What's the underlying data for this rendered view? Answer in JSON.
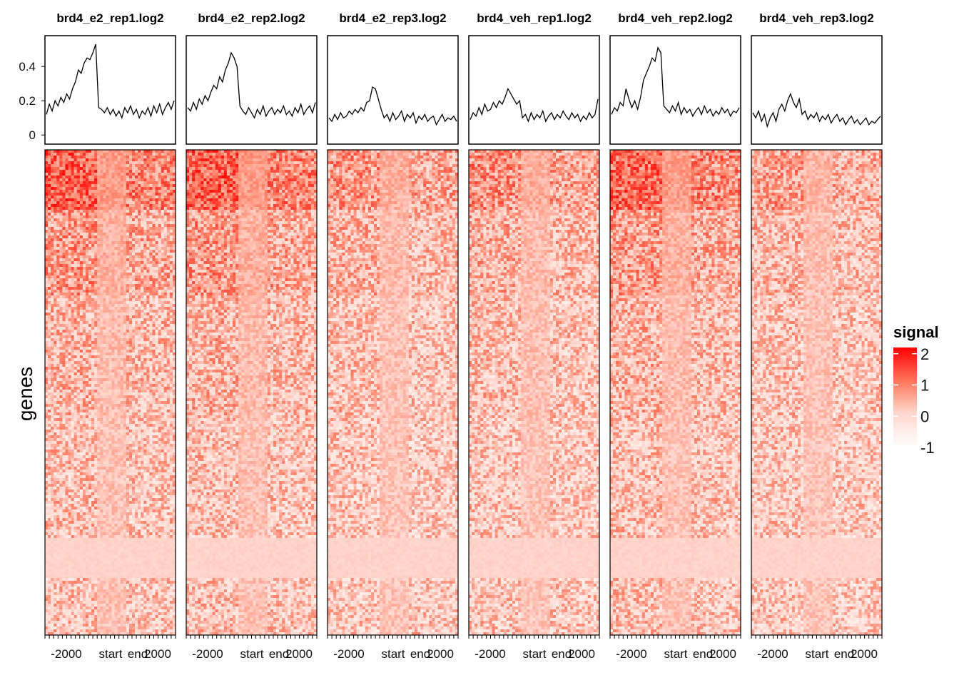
{
  "chart_data": {
    "type": "heatmap",
    "panels": [
      {
        "title": "brd4_e2_rep1.log2",
        "strength": 1.0,
        "profile": [
          0.12,
          0.18,
          0.14,
          0.2,
          0.17,
          0.22,
          0.19,
          0.24,
          0.21,
          0.27,
          0.31,
          0.38,
          0.36,
          0.42,
          0.45,
          0.44,
          0.48,
          0.53,
          0.16,
          0.15,
          0.13,
          0.16,
          0.12,
          0.15,
          0.11,
          0.14,
          0.1,
          0.16,
          0.13,
          0.17,
          0.12,
          0.15,
          0.1,
          0.14,
          0.12,
          0.16,
          0.11,
          0.17,
          0.13,
          0.18,
          0.12,
          0.16,
          0.19,
          0.15,
          0.2
        ]
      },
      {
        "title": "brd4_e2_rep2.log2",
        "strength": 1.0,
        "profile": [
          0.16,
          0.14,
          0.19,
          0.15,
          0.21,
          0.18,
          0.23,
          0.2,
          0.25,
          0.29,
          0.27,
          0.34,
          0.31,
          0.38,
          0.42,
          0.48,
          0.45,
          0.4,
          0.17,
          0.14,
          0.12,
          0.16,
          0.13,
          0.1,
          0.15,
          0.12,
          0.17,
          0.11,
          0.14,
          0.16,
          0.12,
          0.15,
          0.13,
          0.17,
          0.12,
          0.14,
          0.11,
          0.16,
          0.13,
          0.18,
          0.12,
          0.15,
          0.17,
          0.13,
          0.19
        ]
      },
      {
        "title": "brd4_e2_rep3.log2",
        "strength": 0.55,
        "profile": [
          0.1,
          0.08,
          0.12,
          0.09,
          0.13,
          0.1,
          0.11,
          0.14,
          0.12,
          0.15,
          0.13,
          0.16,
          0.14,
          0.19,
          0.2,
          0.28,
          0.27,
          0.21,
          0.15,
          0.1,
          0.12,
          0.08,
          0.13,
          0.09,
          0.11,
          0.14,
          0.08,
          0.12,
          0.1,
          0.13,
          0.07,
          0.11,
          0.09,
          0.12,
          0.08,
          0.1,
          0.11,
          0.06,
          0.09,
          0.12,
          0.08,
          0.1,
          0.09,
          0.11,
          0.08
        ]
      },
      {
        "title": "brd4_veh_rep1.log2",
        "strength": 0.6,
        "profile": [
          0.09,
          0.13,
          0.11,
          0.16,
          0.12,
          0.18,
          0.14,
          0.15,
          0.19,
          0.16,
          0.2,
          0.18,
          0.22,
          0.27,
          0.24,
          0.21,
          0.18,
          0.2,
          0.1,
          0.12,
          0.08,
          0.13,
          0.09,
          0.12,
          0.1,
          0.14,
          0.08,
          0.11,
          0.13,
          0.09,
          0.12,
          0.1,
          0.14,
          0.11,
          0.09,
          0.13,
          0.1,
          0.12,
          0.08,
          0.11,
          0.09,
          0.13,
          0.1,
          0.12,
          0.21
        ]
      },
      {
        "title": "brd4_veh_rep2.log2",
        "strength": 0.95,
        "profile": [
          0.12,
          0.16,
          0.14,
          0.19,
          0.17,
          0.27,
          0.21,
          0.16,
          0.2,
          0.15,
          0.22,
          0.32,
          0.36,
          0.4,
          0.45,
          0.43,
          0.51,
          0.48,
          0.17,
          0.15,
          0.13,
          0.17,
          0.14,
          0.19,
          0.12,
          0.16,
          0.13,
          0.15,
          0.11,
          0.14,
          0.16,
          0.12,
          0.17,
          0.13,
          0.15,
          0.11,
          0.14,
          0.12,
          0.16,
          0.13,
          0.15,
          0.11,
          0.14,
          0.13,
          0.16
        ]
      },
      {
        "title": "brd4_veh_rep3.log2",
        "strength": 0.45,
        "profile": [
          0.13,
          0.1,
          0.14,
          0.08,
          0.12,
          0.05,
          0.1,
          0.13,
          0.08,
          0.15,
          0.18,
          0.14,
          0.2,
          0.24,
          0.19,
          0.16,
          0.21,
          0.12,
          0.14,
          0.09,
          0.12,
          0.1,
          0.13,
          0.08,
          0.11,
          0.09,
          0.12,
          0.07,
          0.1,
          0.12,
          0.08,
          0.1,
          0.06,
          0.09,
          0.11,
          0.07,
          0.09,
          0.06,
          0.08,
          0.1,
          0.06,
          0.08,
          0.07,
          0.09,
          0.11
        ]
      }
    ],
    "profile_yticks": [
      0,
      0.2,
      0.4
    ],
    "profile_ylim": [
      -0.02,
      0.58
    ],
    "xticks": [
      "-2000",
      "start",
      "end",
      "2000"
    ],
    "ylabel": "genes",
    "legend": {
      "title": "signal",
      "ticks": [
        2,
        1,
        0,
        -1
      ],
      "range": [
        -1,
        2.2
      ],
      "color_low": "#ffffff",
      "color_high": "#ff0000"
    },
    "num_genes": 170,
    "num_bins": 45
  }
}
